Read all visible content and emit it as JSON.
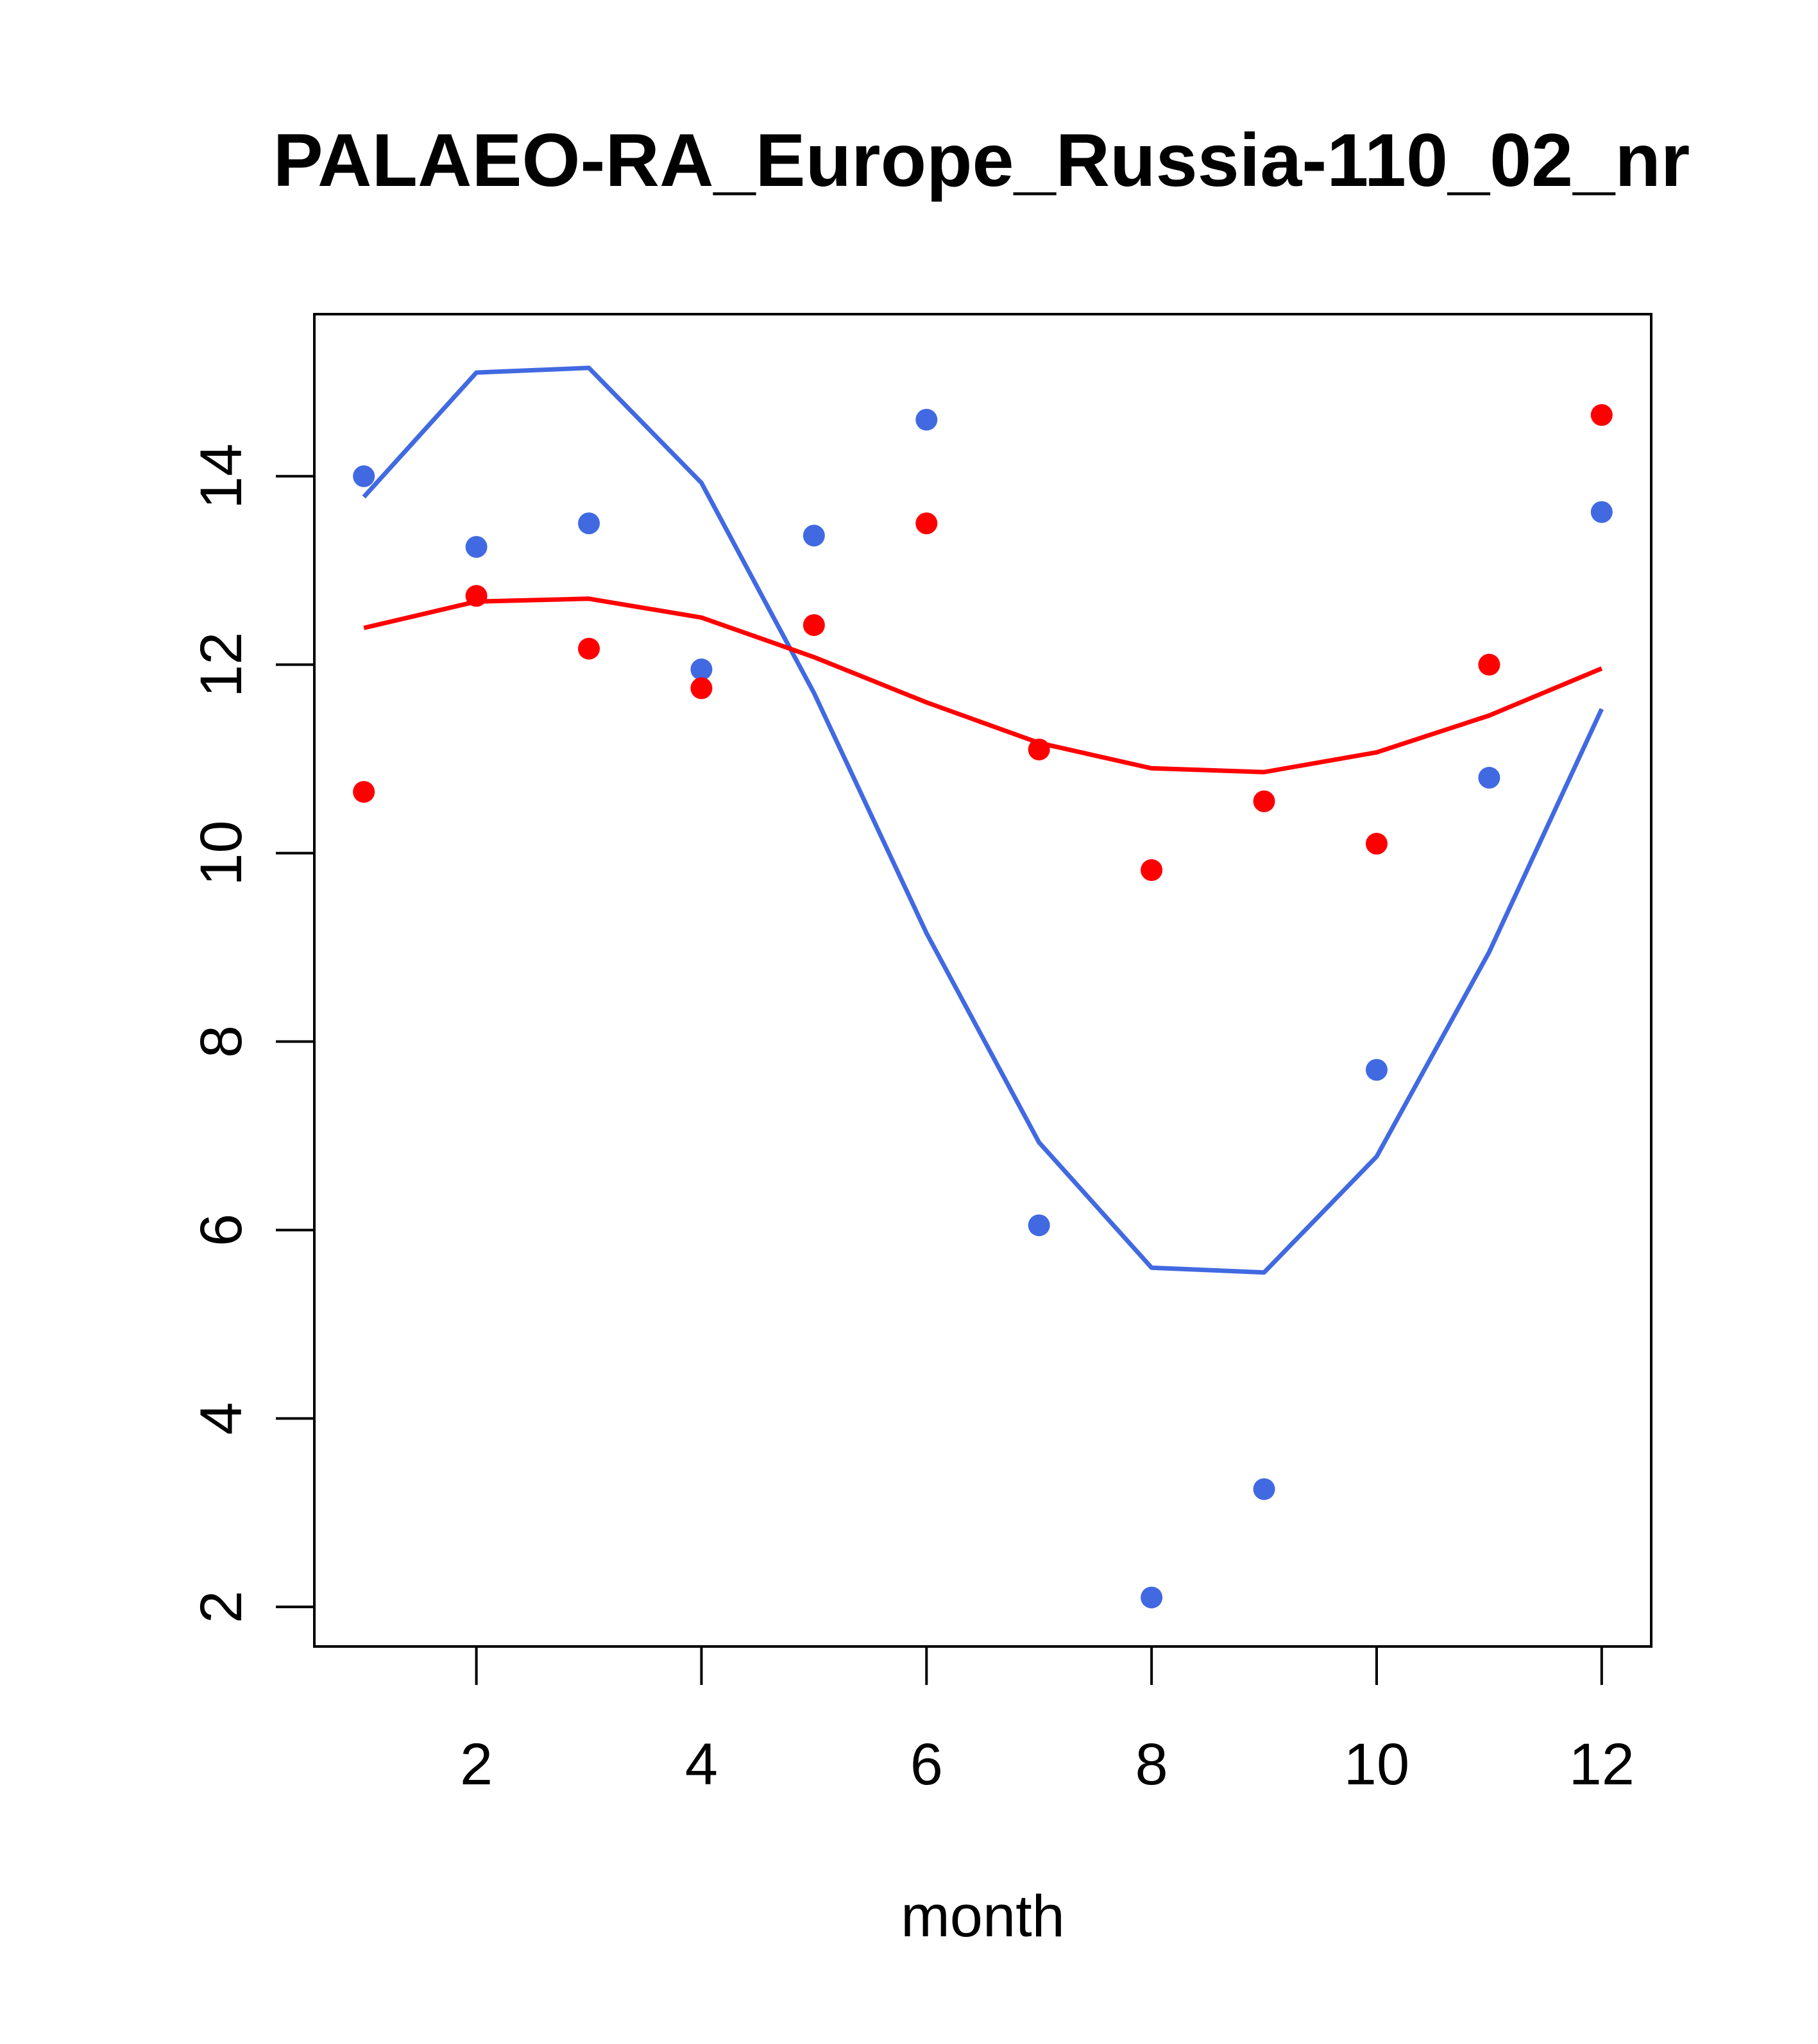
{
  "chart_data": {
    "type": "scatter",
    "title": "PALAEO-RA_Europe_Russia-110_02_nr",
    "xlabel": "month",
    "ylabel": "",
    "xlim": [
      0.56,
      12.44
    ],
    "ylim": [
      1.58,
      15.72
    ],
    "xticks": [
      2,
      4,
      6,
      8,
      10,
      12
    ],
    "yticks": [
      2,
      4,
      6,
      8,
      10,
      12,
      14
    ],
    "grid": false,
    "series": [
      {
        "name": "blue points",
        "kind": "points",
        "color": "#4169e1",
        "x": [
          1,
          2,
          3,
          4,
          5,
          6,
          7,
          8,
          9,
          10,
          11,
          12
        ],
        "y": [
          14.0,
          13.25,
          13.5,
          11.95,
          13.37,
          14.6,
          6.05,
          2.1,
          3.25,
          7.7,
          10.8,
          13.62
        ]
      },
      {
        "name": "red points",
        "kind": "points",
        "color": "#ff0000",
        "x": [
          1,
          2,
          3,
          4,
          5,
          6,
          7,
          8,
          9,
          10,
          11,
          12
        ],
        "y": [
          10.65,
          12.73,
          12.17,
          11.75,
          12.42,
          13.5,
          11.1,
          9.82,
          10.55,
          10.1,
          12.0,
          14.65
        ]
      },
      {
        "name": "blue curve",
        "kind": "line",
        "color": "#4169e1",
        "x": [
          1,
          2,
          3,
          4,
          5,
          6,
          7,
          8,
          9,
          10,
          11,
          12
        ],
        "y": [
          13.78,
          15.1,
          15.15,
          13.93,
          11.7,
          9.15,
          6.93,
          5.6,
          5.55,
          6.78,
          8.95,
          11.53
        ]
      },
      {
        "name": "red curve",
        "kind": "line",
        "color": "#ff0000",
        "x": [
          1,
          2,
          3,
          4,
          5,
          6,
          7,
          8,
          9,
          10,
          11,
          12
        ],
        "y": [
          12.39,
          12.67,
          12.7,
          12.5,
          12.08,
          11.6,
          11.17,
          10.9,
          10.86,
          11.07,
          11.46,
          11.96
        ]
      }
    ]
  }
}
